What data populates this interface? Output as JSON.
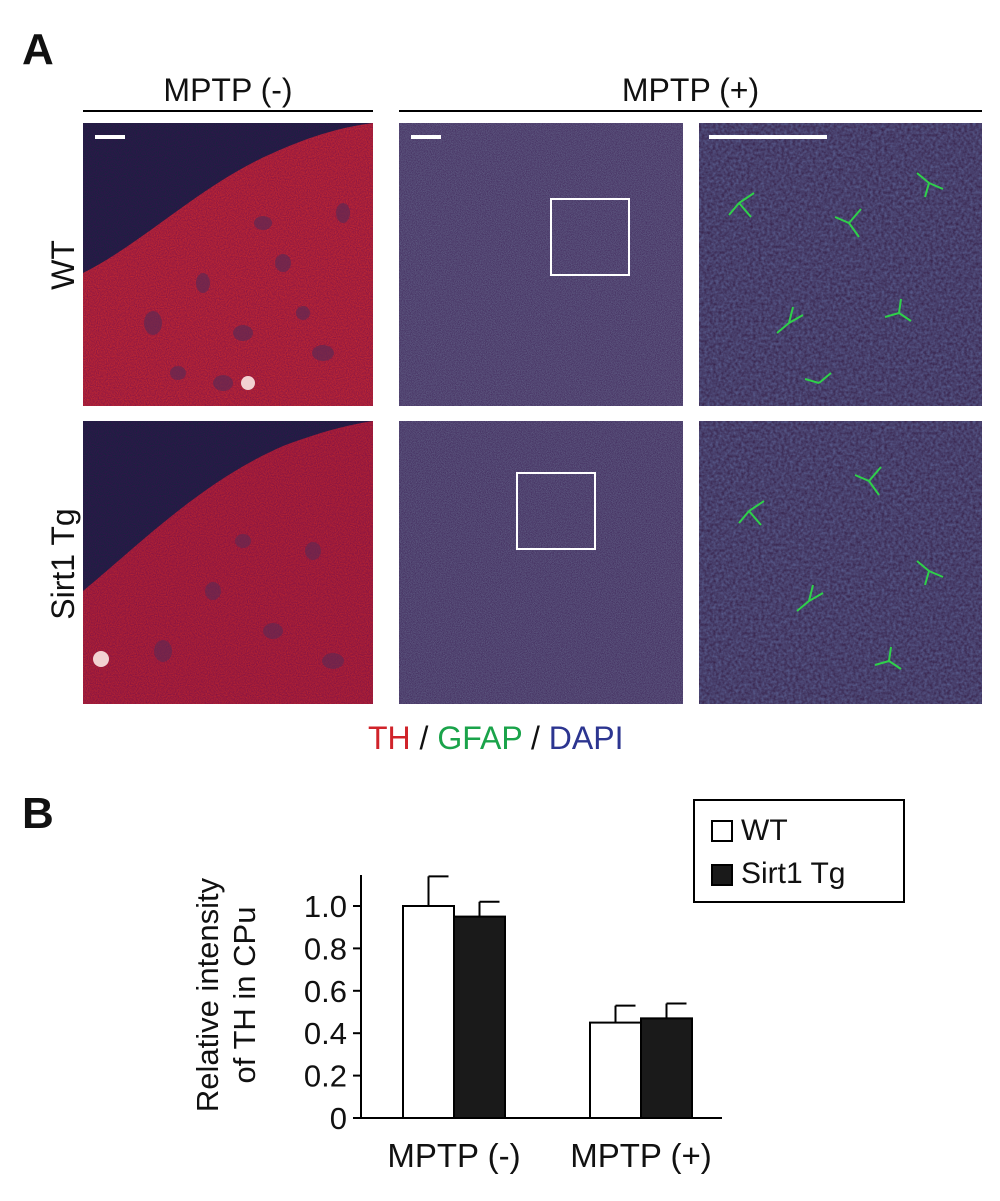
{
  "panel_a": {
    "letter": "A",
    "headers": {
      "left": "MPTP (-)",
      "right": "MPTP (+)"
    },
    "rows": [
      "WT",
      "Sirt1 Tg"
    ],
    "stain_legend": {
      "th": "TH",
      "sep1": " / ",
      "gfap": "GFAP",
      "sep2": " / ",
      "dapi": "DAPI",
      "colors": {
        "th": "#d0232a",
        "gfap": "#1aa34a",
        "dapi": "#2c3590"
      }
    }
  },
  "panel_b": {
    "letter": "B",
    "legend": {
      "wt": "WT",
      "tg": "Sirt1 Tg"
    }
  },
  "chart_data": {
    "type": "bar",
    "categories": [
      "MPTP (-)",
      "MPTP (+)"
    ],
    "series": [
      {
        "name": "WT",
        "values": [
          1.0,
          0.45
        ],
        "errors": [
          0.14,
          0.08
        ],
        "color": "#ffffff"
      },
      {
        "name": "Sirt1 Tg",
        "values": [
          0.95,
          0.47
        ],
        "errors": [
          0.07,
          0.07
        ],
        "color": "#1a1a1a"
      }
    ],
    "ylabel_line1": "Relative intensity",
    "ylabel_line2": "of TH in CPu",
    "ylim": [
      0,
      1.1
    ],
    "yticks": [
      0,
      0.2,
      0.4,
      0.6,
      0.8,
      1.0
    ],
    "ytick_labels": [
      "0",
      "0.2",
      "0.4",
      "0.6",
      "0.8",
      "1.0"
    ],
    "legend_position": "top-right",
    "grid": false
  }
}
